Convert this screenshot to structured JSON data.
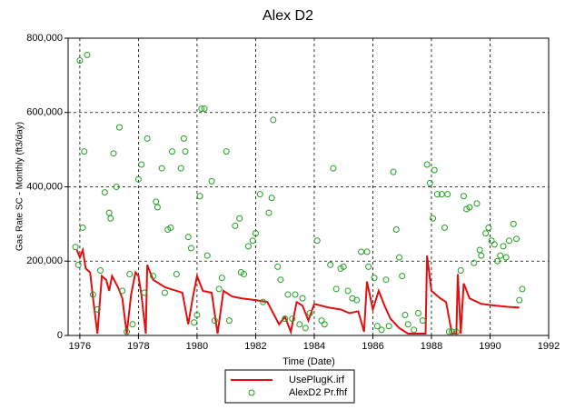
{
  "chart_data": {
    "type": "line",
    "title": "Alex D2",
    "x_label": "Time (Date)",
    "y_label": "Gas Rate SC - Monthly (ft3/day)",
    "xlim": [
      1975.6,
      1992
    ],
    "xticks": [
      1976,
      1978,
      1980,
      1982,
      1984,
      1986,
      1988,
      1990,
      1992
    ],
    "ylim": [
      0,
      800000
    ],
    "yticks": [
      0,
      {
        "value": 200000,
        "label": "200,000"
      },
      {
        "value": 400000,
        "label": "400,000"
      },
      {
        "value": 600000,
        "label": "600,000"
      },
      {
        "value": 800000,
        "label": "800,000"
      }
    ],
    "grid": true,
    "legend": "bottom",
    "series": [
      {
        "name": "UsePlugK.irf",
        "type": "line",
        "color": "#e01010",
        "x": [
          1975.9,
          1976.0,
          1976.1,
          1976.2,
          1976.35,
          1976.45,
          1976.6,
          1976.75,
          1976.9,
          1977.0,
          1977.1,
          1977.3,
          1977.45,
          1977.6,
          1977.75,
          1977.9,
          1978.0,
          1978.1,
          1978.25,
          1978.3,
          1978.5,
          1978.7,
          1978.9,
          1979.1,
          1979.3,
          1979.5,
          1979.7,
          1979.85,
          1980.0,
          1980.2,
          1980.5,
          1980.7,
          1980.9,
          1981.2,
          1981.5,
          1982.0,
          1982.4,
          1982.6,
          1982.8,
          1983.0,
          1983.2,
          1983.4,
          1983.6,
          1983.8,
          1984.0,
          1984.5,
          1984.9,
          1985.2,
          1985.5,
          1985.7,
          1985.8,
          1986.0,
          1986.2,
          1986.4,
          1986.6,
          1986.9,
          1987.2,
          1987.5,
          1987.8,
          1987.85,
          1988.0,
          1988.3,
          1988.5,
          1988.7,
          1988.85,
          1988.9,
          1989.0,
          1989.1,
          1989.3,
          1989.7,
          1990.2,
          1990.6,
          1991.0
        ],
        "values": [
          230000,
          210000,
          230000,
          180000,
          170000,
          100000,
          5000,
          160000,
          150000,
          120000,
          160000,
          130000,
          100000,
          5000,
          110000,
          170000,
          160000,
          110000,
          5000,
          190000,
          150000,
          140000,
          130000,
          125000,
          120000,
          115000,
          30000,
          100000,
          160000,
          120000,
          115000,
          5000,
          120000,
          105000,
          100000,
          95000,
          90000,
          60000,
          30000,
          50000,
          10000,
          90000,
          80000,
          40000,
          85000,
          75000,
          70000,
          60000,
          65000,
          10000,
          145000,
          70000,
          120000,
          80000,
          45000,
          20000,
          5000,
          5000,
          5000,
          215000,
          120000,
          100000,
          90000,
          5000,
          5000,
          165000,
          5000,
          140000,
          100000,
          85000,
          80000,
          77000,
          75000
        ]
      },
      {
        "name": "AlexD2 Pr.fhf",
        "type": "scatter",
        "color": "#22a022",
        "x": [
          1975.85,
          1975.95,
          1976.0,
          1976.1,
          1976.15,
          1976.25,
          1976.45,
          1976.6,
          1976.7,
          1976.85,
          1977.0,
          1977.05,
          1977.15,
          1977.25,
          1977.35,
          1977.45,
          1977.6,
          1977.7,
          1977.8,
          1978.0,
          1978.1,
          1978.2,
          1978.3,
          1978.5,
          1978.6,
          1978.65,
          1978.8,
          1978.9,
          1979.0,
          1979.1,
          1979.15,
          1979.3,
          1979.45,
          1979.55,
          1979.6,
          1979.7,
          1979.8,
          1979.9,
          1980.0,
          1980.1,
          1980.15,
          1980.25,
          1980.35,
          1980.5,
          1980.6,
          1980.75,
          1980.85,
          1981.0,
          1981.1,
          1981.3,
          1981.45,
          1981.5,
          1981.6,
          1981.75,
          1981.9,
          1982.0,
          1982.15,
          1982.25,
          1982.45,
          1982.55,
          1982.6,
          1982.75,
          1982.85,
          1983.0,
          1983.1,
          1983.25,
          1983.35,
          1983.5,
          1983.6,
          1983.7,
          1983.85,
          1984.1,
          1984.25,
          1984.35,
          1984.55,
          1984.65,
          1984.75,
          1984.9,
          1985.0,
          1985.15,
          1985.3,
          1985.45,
          1985.6,
          1985.8,
          1985.85,
          1986.05,
          1986.15,
          1986.3,
          1986.45,
          1986.55,
          1986.7,
          1986.8,
          1986.9,
          1987.0,
          1987.1,
          1987.2,
          1987.4,
          1987.55,
          1987.7,
          1987.85,
          1987.95,
          1988.05,
          1988.1,
          1988.2,
          1988.35,
          1988.45,
          1988.55,
          1988.6,
          1988.7,
          1988.85,
          1989.0,
          1989.1,
          1989.2,
          1989.3,
          1989.45,
          1989.55,
          1989.65,
          1989.7,
          1989.85,
          1989.95,
          1990.05,
          1990.15,
          1990.25,
          1990.35,
          1990.45,
          1990.55,
          1990.65,
          1990.8,
          1990.9,
          1991.0,
          1991.1
        ],
        "values": [
          238000,
          190000,
          740000,
          290000,
          495000,
          755000,
          110000,
          70000,
          175000,
          385000,
          330000,
          315000,
          490000,
          400000,
          560000,
          120000,
          10000,
          165000,
          30000,
          420000,
          460000,
          115000,
          530000,
          160000,
          360000,
          345000,
          450000,
          115000,
          285000,
          290000,
          495000,
          165000,
          450000,
          530000,
          495000,
          265000,
          235000,
          35000,
          55000,
          375000,
          610000,
          610000,
          215000,
          415000,
          40000,
          125000,
          155000,
          495000,
          40000,
          295000,
          315000,
          170000,
          165000,
          240000,
          255000,
          275000,
          380000,
          90000,
          330000,
          370000,
          580000,
          185000,
          150000,
          45000,
          110000,
          45000,
          110000,
          30000,
          100000,
          20000,
          60000,
          255000,
          40000,
          30000,
          190000,
          450000,
          125000,
          180000,
          185000,
          120000,
          100000,
          95000,
          225000,
          225000,
          185000,
          155000,
          25000,
          15000,
          150000,
          25000,
          440000,
          285000,
          210000,
          160000,
          55000,
          30000,
          15000,
          60000,
          40000,
          460000,
          410000,
          315000,
          445000,
          380000,
          380000,
          290000,
          380000,
          10000,
          10000,
          10000,
          175000,
          375000,
          340000,
          345000,
          195000,
          355000,
          230000,
          215000,
          275000,
          290000,
          255000,
          245000,
          200000,
          215000,
          240000,
          210000,
          255000,
          300000,
          260000,
          95000,
          125000
        ]
      }
    ]
  }
}
